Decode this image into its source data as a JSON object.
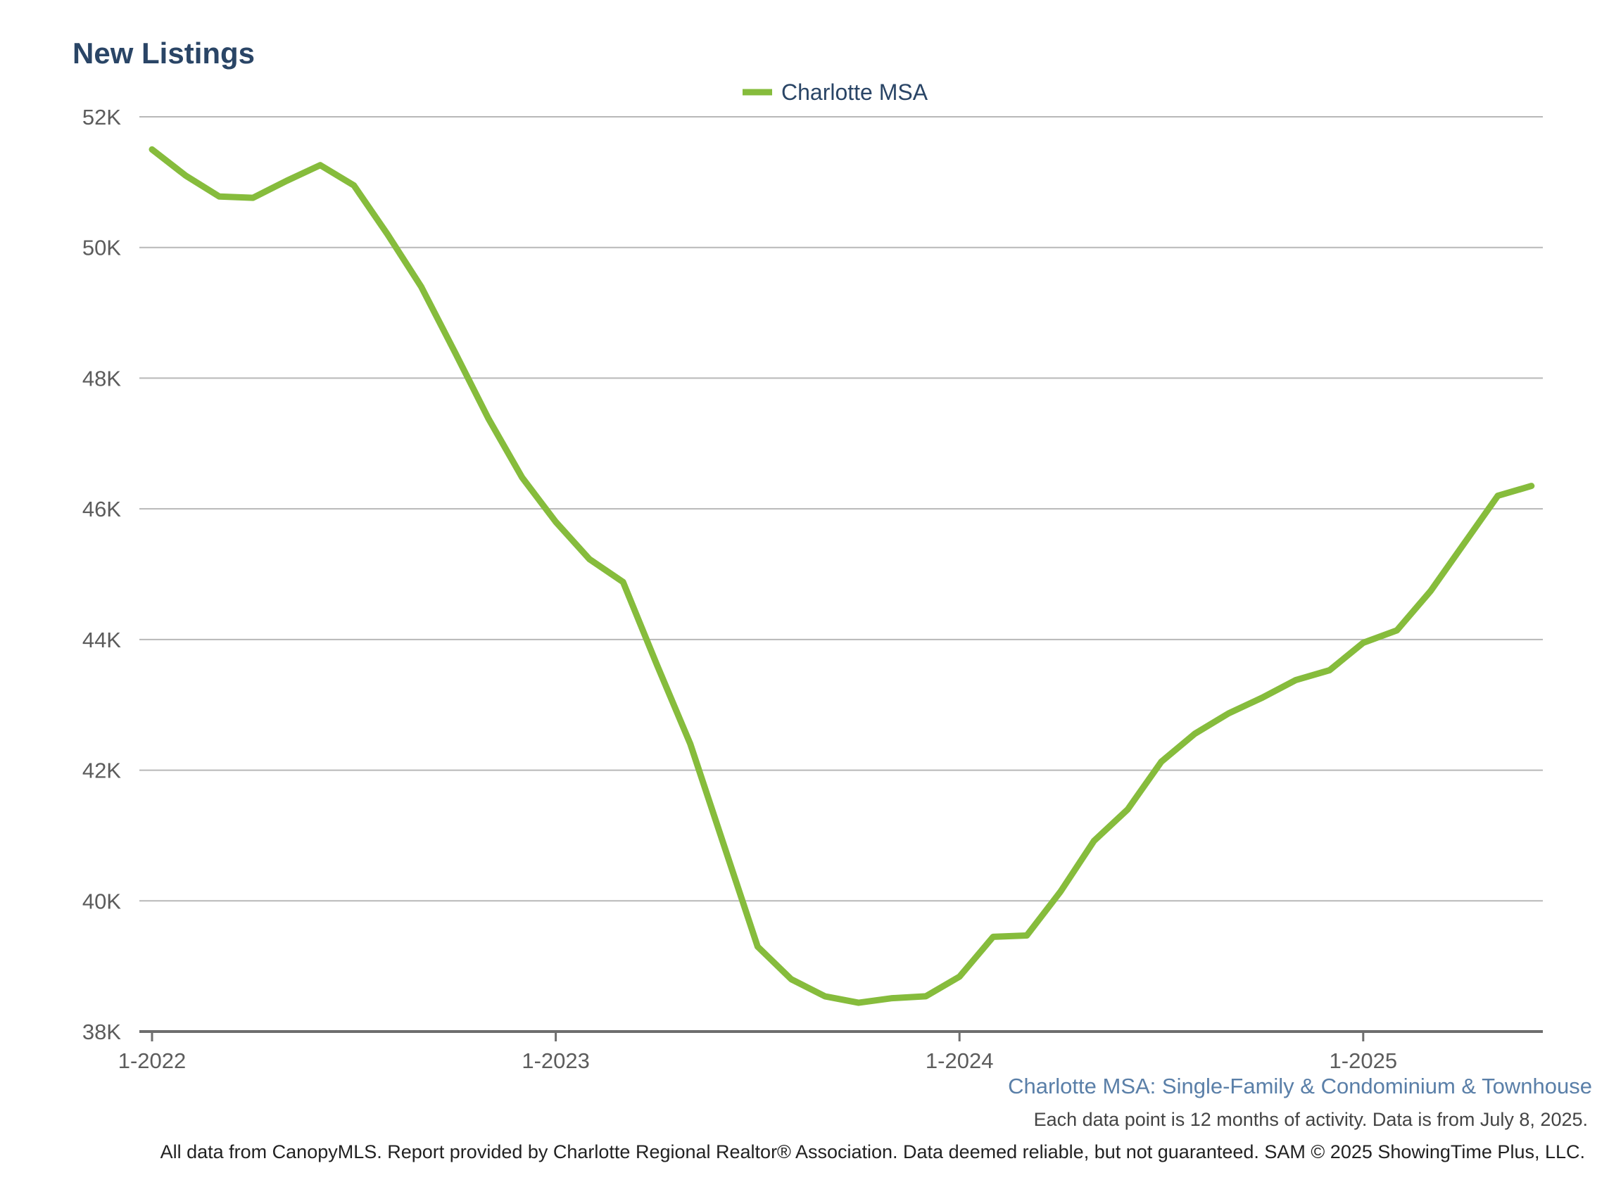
{
  "chart_data": {
    "type": "line",
    "title": "New Listings",
    "legend": {
      "placement": "top-center",
      "entries": [
        "Charlotte MSA"
      ]
    },
    "xlabel": "",
    "ylabel": "",
    "ylim": [
      38000,
      52000
    ],
    "yticks": [
      38000,
      40000,
      42000,
      44000,
      46000,
      48000,
      50000,
      52000
    ],
    "ytick_labels": [
      "38K",
      "40K",
      "42K",
      "44K",
      "46K",
      "48K",
      "50K",
      "52K"
    ],
    "xtick_labels": [
      "1-2022",
      "1-2023",
      "1-2024",
      "1-2025"
    ],
    "grid": "horizontal",
    "series": [
      {
        "name": "Charlotte MSA",
        "color": "#86bc3c",
        "x": [
          "1-2022",
          "2-2022",
          "3-2022",
          "4-2022",
          "5-2022",
          "6-2022",
          "7-2022",
          "8-2022",
          "9-2022",
          "10-2022",
          "11-2022",
          "12-2022",
          "1-2023",
          "2-2023",
          "3-2023",
          "4-2023",
          "5-2023",
          "6-2023",
          "7-2023",
          "8-2023",
          "9-2023",
          "10-2023",
          "11-2023",
          "12-2023",
          "1-2024",
          "2-2024",
          "3-2024",
          "4-2024",
          "5-2024",
          "6-2024",
          "7-2024",
          "8-2024",
          "9-2024",
          "10-2024",
          "11-2024",
          "12-2024",
          "1-2025",
          "2-2025",
          "3-2025",
          "4-2025",
          "5-2025",
          "6-2025"
        ],
        "values": [
          51500,
          51100,
          50780,
          50760,
          51020,
          51260,
          50950,
          50200,
          49400,
          48400,
          47380,
          46480,
          45800,
          45230,
          44880,
          43620,
          42400,
          40850,
          39300,
          38800,
          38540,
          38440,
          38510,
          38540,
          38840,
          39450,
          39470,
          40140,
          40920,
          41400,
          42130,
          42560,
          42870,
          43110,
          43380,
          43530,
          43950,
          44140,
          44740,
          45470,
          46200,
          46350
        ]
      }
    ]
  },
  "caption": {
    "subtitle": "Charlotte MSA: Single-Family & Condominium & Townhouse",
    "note": "Each data point is 12 months of activity. Data is from July 8, 2025.",
    "footer": "All data from CanopyMLS. Report provided by Charlotte Regional Realtor® Association. Data deemed reliable, but not guaranteed. SAM © 2025 ShowingTime Plus, LLC."
  }
}
